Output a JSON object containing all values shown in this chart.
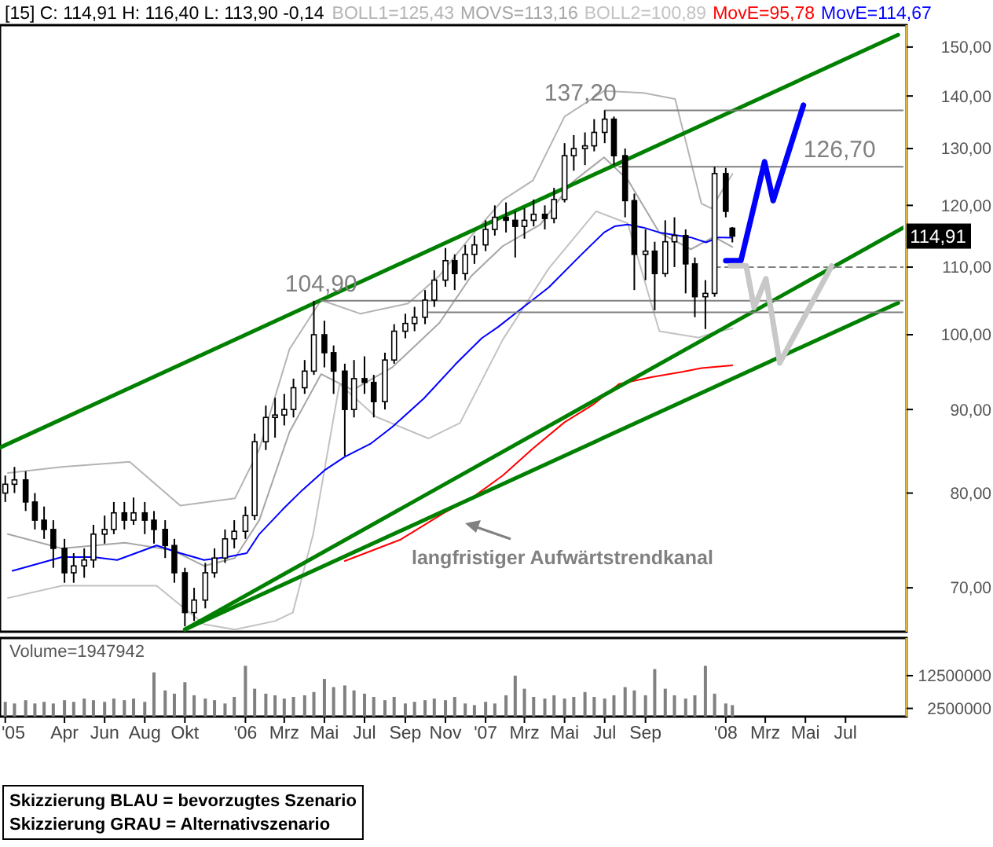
{
  "chart_data": [
    {
      "type": "candlestick",
      "title": "[15] C: 114,91 H: 116,40 L: 113,90 -0,14",
      "legend": "top",
      "log": true,
      "tick_labels": "y",
      "xlim": [
        "2004-12-24",
        "2008-09-27"
      ],
      "ylim": [
        65.8,
        154.7
      ],
      "yticks": [
        {
          "value": 70,
          "label": "70,00"
        },
        {
          "value": 80,
          "label": "80,00"
        },
        {
          "value": 90,
          "label": "90,00"
        },
        {
          "value": 100,
          "label": "100,00"
        },
        {
          "value": 110,
          "label": "110,00"
        },
        {
          "value": 120,
          "label": "120,00"
        },
        {
          "value": 130,
          "label": "130,00"
        },
        {
          "value": 140,
          "label": "140,00"
        },
        {
          "value": 150,
          "label": "150,00"
        }
      ],
      "x": [
        "2005-01-01",
        "2005-01-15",
        "2005-02-01",
        "2005-02-15",
        "2005-03-01",
        "2005-03-15",
        "2005-04-01",
        "2005-04-15",
        "2005-05-01",
        "2005-05-15",
        "2005-06-01",
        "2005-06-15",
        "2005-07-01",
        "2005-07-15",
        "2005-08-01",
        "2005-08-15",
        "2005-09-01",
        "2005-09-15",
        "2005-10-01",
        "2005-10-15",
        "2005-11-01",
        "2005-11-15",
        "2005-12-01",
        "2005-12-15",
        "2006-01-01",
        "2006-01-15",
        "2006-02-01",
        "2006-02-15",
        "2006-03-01",
        "2006-03-15",
        "2006-04-01",
        "2006-04-15",
        "2006-05-01",
        "2006-05-15",
        "2006-06-01",
        "2006-06-15",
        "2006-07-01",
        "2006-07-15",
        "2006-08-01",
        "2006-08-15",
        "2006-09-01",
        "2006-09-15",
        "2006-10-01",
        "2006-10-15",
        "2006-11-01",
        "2006-11-15",
        "2006-12-01",
        "2006-12-15",
        "2007-01-01",
        "2007-01-15",
        "2007-02-01",
        "2007-02-15",
        "2007-03-01",
        "2007-03-15",
        "2007-04-01",
        "2007-04-15",
        "2007-05-01",
        "2007-05-15",
        "2007-06-01",
        "2007-06-15",
        "2007-07-01",
        "2007-07-15",
        "2007-08-01",
        "2007-08-15",
        "2007-09-01",
        "2007-09-15",
        "2007-10-01",
        "2007-10-15",
        "2007-11-01",
        "2007-11-15",
        "2007-12-01",
        "2007-12-15",
        "2008-01-01",
        "2008-01-11"
      ],
      "ohlc": [
        [
          80.0,
          82.0,
          79.0,
          81.0
        ],
        [
          81.0,
          83.0,
          80.0,
          81.5
        ],
        [
          81.5,
          82.5,
          78.0,
          79.0
        ],
        [
          79.0,
          80.0,
          76.0,
          77.0
        ],
        [
          77.0,
          78.5,
          75.0,
          76.0
        ],
        [
          76.0,
          77.0,
          72.0,
          74.0
        ],
        [
          74.0,
          75.0,
          70.5,
          71.5
        ],
        [
          71.5,
          73.5,
          70.5,
          72.2
        ],
        [
          72.2,
          74.0,
          71.0,
          72.8
        ],
        [
          72.8,
          76.5,
          72.0,
          75.5
        ],
        [
          75.5,
          77.5,
          74.5,
          76.0
        ],
        [
          76.0,
          79.0,
          75.5,
          77.8
        ],
        [
          77.8,
          79.0,
          76.0,
          77.0
        ],
        [
          77.0,
          79.5,
          76.5,
          77.8
        ],
        [
          77.8,
          79.0,
          75.5,
          77.0
        ],
        [
          77.0,
          78.0,
          74.5,
          76.0
        ],
        [
          76.0,
          77.0,
          73.0,
          74.3
        ],
        [
          74.3,
          75.0,
          70.5,
          71.5
        ],
        [
          71.5,
          72.0,
          66.3,
          67.6
        ],
        [
          67.6,
          70.0,
          66.8,
          68.8
        ],
        [
          68.8,
          72.5,
          68.0,
          71.5
        ],
        [
          71.5,
          74.0,
          71.0,
          73.0
        ],
        [
          73.0,
          76.0,
          72.5,
          75.0
        ],
        [
          75.0,
          77.0,
          74.0,
          75.8
        ],
        [
          75.8,
          78.5,
          75.0,
          77.5
        ],
        [
          77.5,
          87.0,
          77.0,
          86.0
        ],
        [
          86.0,
          90.5,
          85.0,
          89.0
        ],
        [
          89.0,
          91.5,
          86.5,
          89.3
        ],
        [
          89.3,
          92.0,
          88.0,
          90.0
        ],
        [
          90.0,
          94.0,
          89.0,
          92.8
        ],
        [
          92.8,
          96.5,
          92.0,
          95.0
        ],
        [
          95.0,
          104.9,
          94.5,
          100.0
        ],
        [
          100.0,
          102.0,
          95.5,
          97.5
        ],
        [
          97.5,
          98.5,
          92.0,
          95.0
        ],
        [
          95.0,
          96.0,
          84.3,
          90.0
        ],
        [
          90.0,
          96.5,
          89.0,
          94.0
        ],
        [
          94.0,
          97.0,
          92.0,
          93.5
        ],
        [
          93.5,
          94.5,
          89.0,
          91.0
        ],
        [
          91.0,
          97.5,
          90.0,
          96.5
        ],
        [
          96.5,
          101.5,
          96.0,
          100.5
        ],
        [
          100.5,
          103.0,
          99.5,
          101.6
        ],
        [
          101.6,
          104.0,
          100.5,
          102.5
        ],
        [
          102.5,
          106.5,
          101.5,
          105.0
        ],
        [
          105.0,
          109.5,
          104.0,
          108.0
        ],
        [
          108.0,
          113.0,
          107.0,
          111.0
        ],
        [
          111.0,
          112.0,
          106.5,
          109.0
        ],
        [
          109.0,
          113.5,
          108.0,
          112.0
        ],
        [
          112.0,
          115.0,
          110.5,
          113.5
        ],
        [
          113.5,
          117.5,
          112.5,
          116.0
        ],
        [
          116.0,
          120.0,
          115.0,
          118.0
        ],
        [
          118.0,
          120.5,
          115.5,
          117.5
        ],
        [
          117.5,
          119.0,
          111.5,
          116.5
        ],
        [
          116.5,
          119.5,
          114.5,
          117.5
        ],
        [
          117.5,
          121.0,
          116.5,
          118.5
        ],
        [
          118.5,
          120.0,
          116.0,
          117.8
        ],
        [
          117.8,
          123.0,
          117.0,
          121.0
        ],
        [
          121.0,
          131.0,
          120.5,
          128.7
        ],
        [
          128.7,
          132.5,
          126.0,
          130.0
        ],
        [
          130.0,
          133.0,
          127.0,
          130.5
        ],
        [
          130.5,
          135.5,
          129.5,
          133.0
        ],
        [
          133.0,
          137.2,
          131.0,
          135.5
        ],
        [
          135.5,
          136.0,
          127.0,
          128.7
        ],
        [
          128.7,
          130.0,
          118.0,
          120.8
        ],
        [
          120.8,
          122.0,
          106.5,
          112.0
        ],
        [
          112.0,
          116.0,
          108.0,
          112.5
        ],
        [
          112.5,
          114.0,
          103.5,
          109.0
        ],
        [
          109.0,
          117.5,
          108.5,
          114.0
        ],
        [
          114.0,
          118.0,
          110.0,
          115.0
        ],
        [
          115.0,
          116.0,
          106.0,
          110.5
        ],
        [
          110.5,
          111.5,
          102.5,
          105.5
        ],
        [
          105.5,
          108.0,
          100.8,
          106.0
        ],
        [
          106.0,
          126.7,
          105.5,
          125.5
        ],
        [
          125.5,
          126.5,
          118.0,
          119.0
        ],
        [
          116.2,
          116.4,
          113.9,
          114.91
        ]
      ],
      "series": [
        {
          "type": "line",
          "name": "BOLL1=125,43",
          "color": "#b4b4b4",
          "x": [
            "2005-01-05",
            "2005-03-28",
            "2005-07-09",
            "2005-09-24",
            "2005-12-16",
            "2006-01-22",
            "2006-03-09",
            "2006-04-26",
            "2006-06-25",
            "2006-09-05",
            "2006-10-23",
            "2006-12-10",
            "2007-01-27",
            "2007-03-14",
            "2007-05-01",
            "2007-06-30",
            "2007-08-29",
            "2007-10-16",
            "2007-11-25",
            "2007-12-10",
            "2008-01-11"
          ],
          "values": [
            82.3,
            83.0,
            83.6,
            78.6,
            79.4,
            85.1,
            98.0,
            105.0,
            103.0,
            104.5,
            108.7,
            114.9,
            120.9,
            124.3,
            136.0,
            141.0,
            140.6,
            139.4,
            120.3,
            119.5,
            125.43
          ]
        },
        {
          "type": "line",
          "name": "MOVS=113,16",
          "color": "#a6a6a6",
          "x": [
            "2005-01-05",
            "2005-03-28",
            "2005-07-02",
            "2005-09-12",
            "2005-10-30",
            "2005-12-16",
            "2006-01-22",
            "2006-03-09",
            "2006-04-26",
            "2006-06-13",
            "2006-08-12",
            "2006-10-23",
            "2006-12-10",
            "2007-01-27",
            "2007-03-25",
            "2007-05-13",
            "2007-06-30",
            "2007-08-05",
            "2007-09-22",
            "2007-11-09",
            "2007-12-14",
            "2008-01-11"
          ],
          "values": [
            75.5,
            74.0,
            74.6,
            73.8,
            72.2,
            73.0,
            77.0,
            87.2,
            94.6,
            92.5,
            95.5,
            101.7,
            108.6,
            113.3,
            116.8,
            124.0,
            128.4,
            124.4,
            115.5,
            112.8,
            114.8,
            113.16
          ]
        },
        {
          "type": "line",
          "name": "BOLL2=100,89",
          "color": "#c2c2c2",
          "x": [
            "2005-01-05",
            "2005-03-28",
            "2005-08-19",
            "2005-10-30",
            "2005-12-16",
            "2006-02-15",
            "2006-03-14",
            "2006-04-14",
            "2006-05-24",
            "2006-07-18",
            "2006-10-06",
            "2006-11-23",
            "2007-01-27",
            "2007-04-07",
            "2007-06-18",
            "2007-08-05",
            "2007-09-22",
            "2007-11-21",
            "2007-12-14",
            "2008-01-11"
          ],
          "values": [
            69.0,
            70.2,
            70.2,
            66.5,
            66.0,
            66.8,
            67.6,
            75.5,
            93.3,
            89.1,
            86.4,
            88.3,
            99.3,
            109.8,
            119.0,
            117.0,
            100.5,
            99.6,
            100.3,
            100.89
          ]
        },
        {
          "type": "line",
          "name": "MovE=95,78",
          "color": "#ff0000",
          "x": [
            "2006-06-01",
            "2006-08-24",
            "2006-10-30",
            "2006-12-10",
            "2007-01-27",
            "2007-03-14",
            "2007-05-01",
            "2007-06-13",
            "2007-07-23",
            "2007-09-10",
            "2007-10-27",
            "2007-11-25",
            "2008-01-11"
          ],
          "values": [
            72.7,
            74.9,
            77.8,
            79.4,
            82.0,
            85.2,
            88.4,
            90.6,
            93.3,
            94.2,
            94.9,
            95.4,
            95.78
          ]
        },
        {
          "type": "line",
          "name": "MovE=114,67",
          "color": "#0000ff",
          "x": [
            "2005-01-12",
            "2005-03-28",
            "2005-05-15",
            "2005-06-20",
            "2005-08-19",
            "2005-09-24",
            "2005-10-30",
            "2005-12-04",
            "2006-01-03",
            "2006-01-22",
            "2006-02-27",
            "2006-03-28",
            "2006-05-01",
            "2006-06-01",
            "2006-07-11",
            "2006-08-12",
            "2006-09-29",
            "2006-11-16",
            "2006-12-26",
            "2007-01-20",
            "2007-02-20",
            "2007-04-07",
            "2007-05-24",
            "2007-06-30",
            "2007-07-16",
            "2007-08-05",
            "2007-08-29",
            "2007-09-22",
            "2007-11-09",
            "2007-12-02",
            "2007-12-21",
            "2008-01-11"
          ],
          "values": [
            71.7,
            73.1,
            73.1,
            72.8,
            74.3,
            73.5,
            72.8,
            73.1,
            73.5,
            75.5,
            78.2,
            80.3,
            82.6,
            84.2,
            85.8,
            87.8,
            91.4,
            95.9,
            99.5,
            101.1,
            103.4,
            106.9,
            111.7,
            115.5,
            116.5,
            116.8,
            116.3,
            115.5,
            114.7,
            113.9,
            114.7,
            114.67
          ]
        },
        {
          "type": "line",
          "color": "#008000",
          "x": [
            "2004-12-24",
            "2008-09-19"
          ],
          "values": [
            85.3,
            152.6
          ]
        },
        {
          "type": "line",
          "color": "#008000",
          "x": [
            "2005-10-01",
            "2008-09-19"
          ],
          "values": [
            66.0,
            104.6
          ]
        },
        {
          "type": "line",
          "color": "#008000",
          "x": [
            "2005-10-01",
            "2008-09-27"
          ],
          "values": [
            66.0,
            116.3
          ]
        },
        {
          "type": "line",
          "color": "#808080",
          "x": [
            "2007-07-01",
            "2008-09-27"
          ],
          "values": [
            137.2,
            137.2
          ]
        },
        {
          "type": "line",
          "color": "#808080",
          "x": [
            "2007-07-23",
            "2008-09-27"
          ],
          "values": [
            126.7,
            126.7
          ]
        },
        {
          "type": "line",
          "color": "#808080",
          "x": [
            "2006-04-26",
            "2008-09-27"
          ],
          "values": [
            104.9,
            104.9
          ]
        },
        {
          "type": "line",
          "color": "#808080",
          "x": [
            "2006-10-06",
            "2008-09-27"
          ],
          "values": [
            103.2,
            103.2
          ]
        },
        {
          "type": "line",
          "color": "#808080",
          "line_style": "dashed",
          "x": [
            "2007-12-14",
            "2008-09-27"
          ],
          "values": [
            110.0,
            110.0
          ]
        },
        {
          "type": "line",
          "color": "#0000ff",
          "x": [
            "2008-01-01",
            "2008-01-24",
            "2008-02-29",
            "2008-03-13",
            "2008-04-28"
          ],
          "values": [
            111.0,
            111.0,
            127.6,
            120.8,
            138.2
          ]
        },
        {
          "type": "line",
          "color": "#c8c8c8",
          "x": [
            "2008-01-08",
            "2008-02-01",
            "2008-02-13",
            "2008-03-02",
            "2008-03-23",
            "2008-06-10"
          ],
          "values": [
            110.2,
            110.2,
            103.9,
            108.2,
            96.1,
            110.2
          ]
        }
      ],
      "annotations": [
        {
          "text": "137,20",
          "x": "2007-05-25",
          "y": 137.2
        },
        {
          "text": "126,70",
          "x": "2008-06-22",
          "y": 126.7
        },
        {
          "text": "104,90",
          "x": "2006-04-26",
          "y": 104.9
        },
        {
          "text": "114,91",
          "y": 114.91
        },
        "langfristiger Aufwärtstrendkanal",
        "Skizzierung BLAU = bevorzugtes Szenario",
        "Skizzierung GRAU = Alternativszenario"
      ]
    },
    {
      "type": "bar",
      "title": "Volume=1947942",
      "color": "#808080",
      "xlim": [
        "2004-12-24",
        "2008-09-27"
      ],
      "ylim": [
        0,
        24000000
      ],
      "yticks": [
        2500000,
        12500000
      ],
      "xticks": [
        {
          "value": "2005-01-01",
          "label": "'05"
        },
        {
          "value": "2005-04-01",
          "label": "Apr"
        },
        {
          "value": "2005-06-01",
          "label": "Jun"
        },
        {
          "value": "2005-08-01",
          "label": "Aug"
        },
        {
          "value": "2005-10-01",
          "label": "Okt"
        },
        {
          "value": "2006-01-01",
          "label": "'06"
        },
        {
          "value": "2006-03-01",
          "label": "Mrz"
        },
        {
          "value": "2006-05-01",
          "label": "Mai"
        },
        {
          "value": "2006-07-01",
          "label": "Jul"
        },
        {
          "value": "2006-09-01",
          "label": "Sep"
        },
        {
          "value": "2006-11-01",
          "label": "Nov"
        },
        {
          "value": "2007-01-01",
          "label": "'07"
        },
        {
          "value": "2007-03-01",
          "label": "Mrz"
        },
        {
          "value": "2007-05-01",
          "label": "Mai"
        },
        {
          "value": "2007-07-01",
          "label": "Jul"
        },
        {
          "value": "2007-09-01",
          "label": "Sep"
        },
        {
          "value": "2008-01-01",
          "label": "'08"
        },
        {
          "value": "2008-03-01",
          "label": "Mrz"
        },
        {
          "value": "2008-05-01",
          "label": "Mai"
        },
        {
          "value": "2008-07-01",
          "label": "Jul"
        }
      ],
      "x": [
        "2005-01-01",
        "2005-01-15",
        "2005-02-01",
        "2005-02-15",
        "2005-03-01",
        "2005-03-15",
        "2005-04-01",
        "2005-04-15",
        "2005-05-01",
        "2005-05-15",
        "2005-06-01",
        "2005-06-15",
        "2005-07-01",
        "2005-07-15",
        "2005-08-01",
        "2005-08-15",
        "2005-09-01",
        "2005-09-15",
        "2005-10-01",
        "2005-10-15",
        "2005-11-01",
        "2005-11-15",
        "2005-12-01",
        "2005-12-15",
        "2006-01-01",
        "2006-01-15",
        "2006-02-01",
        "2006-02-15",
        "2006-03-01",
        "2006-03-15",
        "2006-04-01",
        "2006-04-15",
        "2006-05-01",
        "2006-05-15",
        "2006-06-01",
        "2006-06-15",
        "2006-07-01",
        "2006-07-15",
        "2006-08-01",
        "2006-08-15",
        "2006-09-01",
        "2006-09-15",
        "2006-10-01",
        "2006-10-15",
        "2006-11-01",
        "2006-11-15",
        "2006-12-01",
        "2006-12-15",
        "2007-01-01",
        "2007-01-15",
        "2007-02-01",
        "2007-02-15",
        "2007-03-01",
        "2007-03-15",
        "2007-04-01",
        "2007-04-15",
        "2007-05-01",
        "2007-05-15",
        "2007-06-01",
        "2007-06-15",
        "2007-07-01",
        "2007-07-15",
        "2007-08-01",
        "2007-08-15",
        "2007-09-01",
        "2007-09-15",
        "2007-10-01",
        "2007-10-15",
        "2007-11-01",
        "2007-11-15",
        "2007-12-01",
        "2007-12-15",
        "2008-01-01",
        "2008-01-11"
      ],
      "values": [
        4500000,
        4000000,
        5000000,
        4000000,
        4500000,
        4000000,
        5000000,
        4500000,
        5500000,
        5000000,
        4500000,
        5500000,
        5000000,
        5500000,
        4500000,
        13500000,
        8000000,
        7000000,
        10500000,
        6500000,
        5500000,
        5000000,
        4000000,
        6000000,
        15500000,
        8500000,
        7000000,
        6500000,
        5500000,
        6000000,
        6500000,
        7500000,
        11500000,
        9000000,
        9500000,
        8000000,
        7000000,
        6000000,
        5000000,
        6000000,
        4000000,
        4500000,
        5000000,
        5500000,
        5000000,
        6000000,
        4000000,
        3500000,
        4500000,
        4000000,
        6500000,
        12500000,
        8500000,
        6000000,
        5500000,
        6500000,
        5500000,
        6000000,
        7500000,
        6000000,
        5500000,
        6500000,
        9000000,
        8000000,
        6500000,
        14500000,
        8500000,
        6500000,
        5500000,
        6500000,
        15500000,
        7000000,
        4000000,
        3500000
      ]
    }
  ]
}
